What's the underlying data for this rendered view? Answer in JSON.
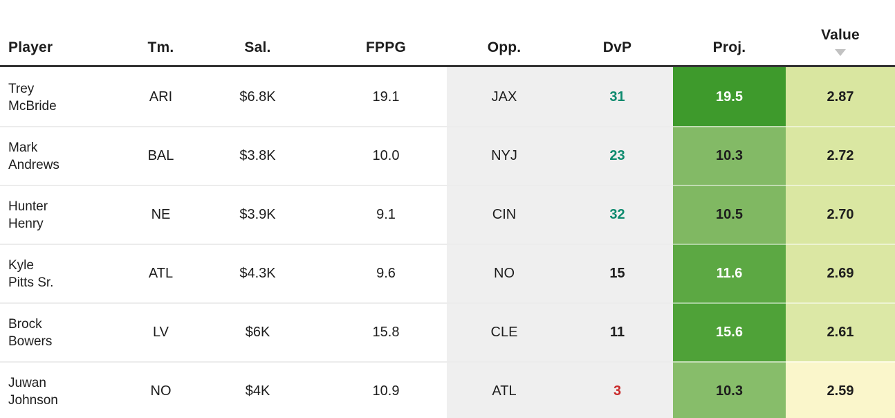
{
  "table": {
    "columns": [
      {
        "key": "player",
        "label": "Player"
      },
      {
        "key": "team",
        "label": "Tm."
      },
      {
        "key": "salary",
        "label": "Sal."
      },
      {
        "key": "fppg",
        "label": "FPPG"
      },
      {
        "key": "opp",
        "label": "Opp."
      },
      {
        "key": "dvp",
        "label": "DvP"
      },
      {
        "key": "proj",
        "label": "Proj."
      },
      {
        "key": "value",
        "label": "Value"
      }
    ],
    "sort": {
      "column": "Value",
      "direction": "desc"
    },
    "colors": {
      "dvp_good": "#0d8a6e",
      "dvp_neutral": "#1d1d1d",
      "dvp_bad": "#c92a2a",
      "muted_column_bg": "#efefef",
      "header_border": "#333333",
      "sort_icon": "#c2c2c2"
    },
    "rows": [
      {
        "player_line1": "Trey",
        "player_line2": "McBride",
        "team": "ARI",
        "salary": "$6.8K",
        "fppg": "19.1",
        "opp": "JAX",
        "dvp": "31",
        "dvp_color": "#0d8a6e",
        "proj": "19.5",
        "proj_bg": "#3e9a2c",
        "proj_text": "#ffffff",
        "value": "2.87",
        "value_bg": "#d9e6a0",
        "value_text": "#1d1d1d"
      },
      {
        "player_line1": "Mark",
        "player_line2": "Andrews",
        "team": "BAL",
        "salary": "$3.8K",
        "fppg": "10.0",
        "opp": "NYJ",
        "dvp": "23",
        "dvp_color": "#0d8a6e",
        "proj": "10.3",
        "proj_bg": "#83ba66",
        "proj_text": "#1d1d1d",
        "value": "2.72",
        "value_bg": "#dae7a2",
        "value_text": "#1d1d1d"
      },
      {
        "player_line1": "Hunter",
        "player_line2": "Henry",
        "team": "NE",
        "salary": "$3.9K",
        "fppg": "9.1",
        "opp": "CIN",
        "dvp": "32",
        "dvp_color": "#0d8a6e",
        "proj": "10.5",
        "proj_bg": "#80b862",
        "proj_text": "#1d1d1d",
        "value": "2.70",
        "value_bg": "#dae7a2",
        "value_text": "#1d1d1d"
      },
      {
        "player_line1": "Kyle",
        "player_line2": "Pitts Sr.",
        "team": "ATL",
        "salary": "$4.3K",
        "fppg": "9.6",
        "opp": "NO",
        "dvp": "15",
        "dvp_color": "#1d1d1d",
        "proj": "11.6",
        "proj_bg": "#5ca843",
        "proj_text": "#ffffff",
        "value": "2.69",
        "value_bg": "#dbe7a3",
        "value_text": "#1d1d1d"
      },
      {
        "player_line1": "Brock",
        "player_line2": "Bowers",
        "team": "LV",
        "salary": "$6K",
        "fppg": "15.8",
        "opp": "CLE",
        "dvp": "11",
        "dvp_color": "#1d1d1d",
        "proj": "15.6",
        "proj_bg": "#4fa238",
        "proj_text": "#ffffff",
        "value": "2.61",
        "value_bg": "#dce8a6",
        "value_text": "#1d1d1d"
      },
      {
        "player_line1": "Juwan",
        "player_line2": "Johnson",
        "team": "NO",
        "salary": "$4K",
        "fppg": "10.9",
        "opp": "ATL",
        "dvp": "3",
        "dvp_color": "#c92a2a",
        "proj": "10.3",
        "proj_bg": "#87bd6a",
        "proj_text": "#1d1d1d",
        "value": "2.59",
        "value_bg": "#faf6cb",
        "value_text": "#1d1d1d"
      }
    ]
  }
}
